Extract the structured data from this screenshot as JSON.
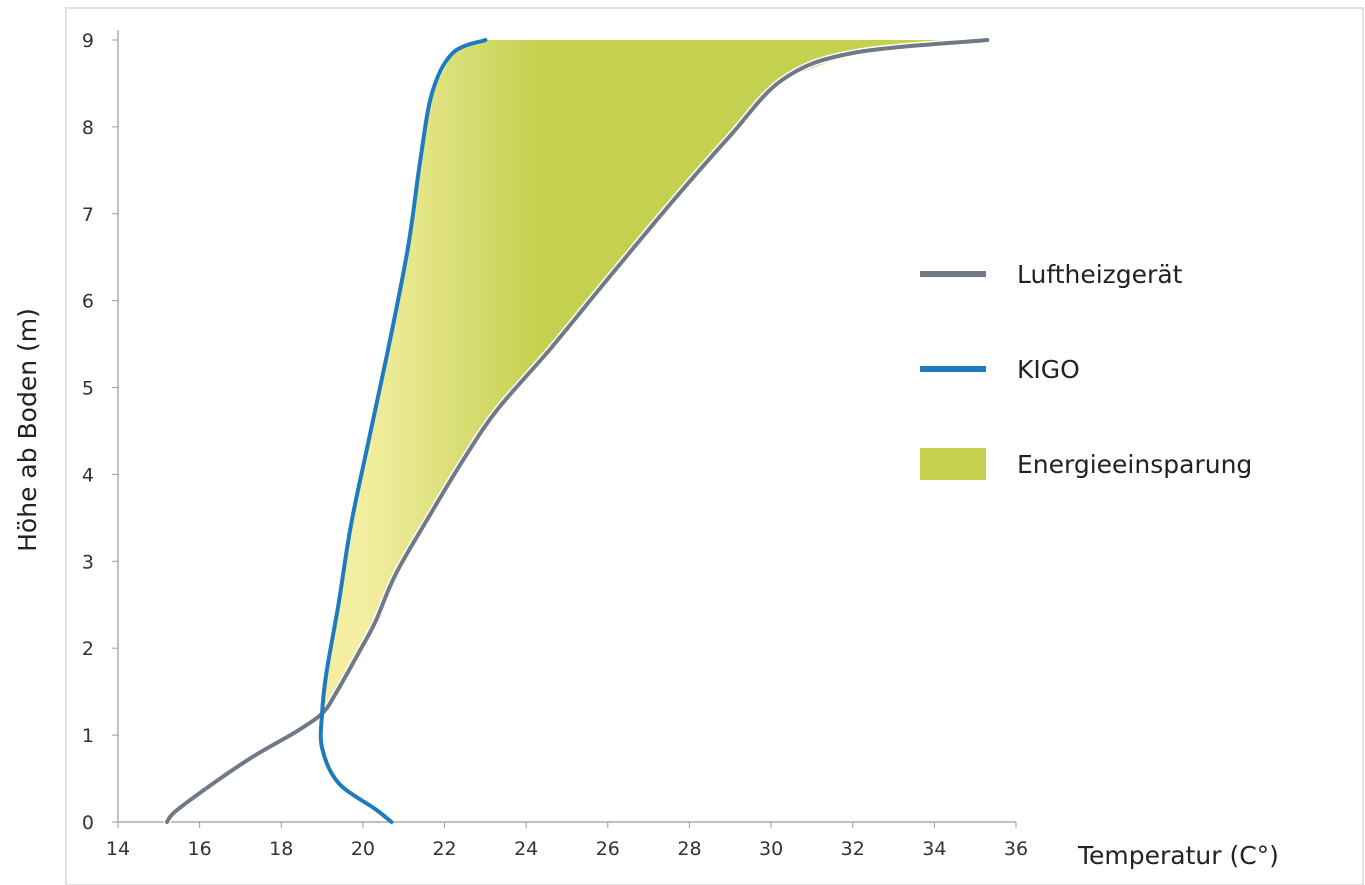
{
  "chart_data": {
    "type": "line",
    "xlabel": "Temperatur (C°)",
    "ylabel": "Höhe ab Boden  (m)",
    "xlim": [
      14,
      36
    ],
    "ylim": [
      0,
      9
    ],
    "x_ticks": [
      "14",
      "16",
      "18",
      "20",
      "22",
      "24",
      "26",
      "28",
      "30",
      "32",
      "34",
      "36"
    ],
    "y_ticks": [
      "0",
      "1",
      "2",
      "3",
      "4",
      "5",
      "6",
      "7",
      "8",
      "9"
    ],
    "grid": false,
    "legend_position": "right",
    "series": [
      {
        "name": "Luftheizgerät",
        "color": "#707a86",
        "points": [
          [
            15.2,
            0.0
          ],
          [
            15.4,
            0.12
          ],
          [
            16.2,
            0.4
          ],
          [
            17.3,
            0.75
          ],
          [
            18.4,
            1.05
          ],
          [
            19.0,
            1.25
          ],
          [
            19.3,
            1.45
          ],
          [
            19.9,
            1.95
          ],
          [
            20.3,
            2.3
          ],
          [
            20.8,
            2.85
          ],
          [
            21.6,
            3.5
          ],
          [
            22.5,
            4.2
          ],
          [
            23.3,
            4.75
          ],
          [
            24.6,
            5.45
          ],
          [
            26.0,
            6.25
          ],
          [
            27.6,
            7.15
          ],
          [
            29.0,
            7.9
          ],
          [
            30.3,
            8.55
          ],
          [
            32.0,
            8.85
          ],
          [
            35.3,
            9.0
          ]
        ]
      },
      {
        "name": "KIGO",
        "color": "#1f7bbf",
        "points": [
          [
            20.7,
            0.0
          ],
          [
            20.3,
            0.15
          ],
          [
            19.4,
            0.45
          ],
          [
            19.0,
            0.85
          ],
          [
            19.0,
            1.25
          ],
          [
            19.1,
            1.7
          ],
          [
            19.4,
            2.5
          ],
          [
            19.7,
            3.4
          ],
          [
            20.1,
            4.3
          ],
          [
            20.6,
            5.4
          ],
          [
            21.1,
            6.6
          ],
          [
            21.4,
            7.6
          ],
          [
            21.7,
            8.4
          ],
          [
            22.2,
            8.85
          ],
          [
            23.0,
            9.0
          ]
        ]
      }
    ],
    "fill_between": {
      "name": "Energieeinsparung",
      "color_start": "#f3eea2",
      "color_end": "#c4d150"
    }
  }
}
